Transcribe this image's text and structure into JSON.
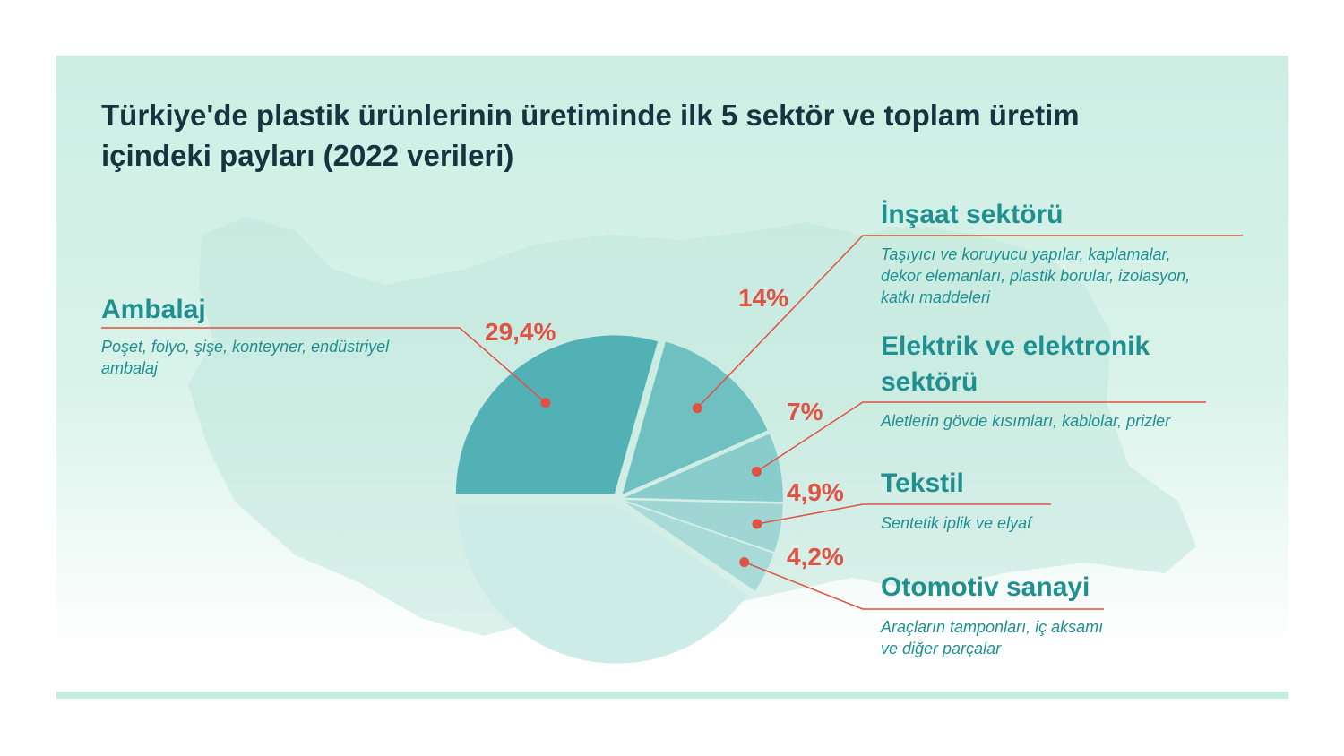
{
  "title": "Türkiye'de plastik ürünlerinin üretiminde ilk 5 sektör ve toplam üretim içindeki payları (2022 verileri)",
  "colors": {
    "accent": "#e05243",
    "label": "#1f8f90",
    "title": "#173340",
    "background": "#d4f1e7",
    "slice_main": "#52b1b5",
    "slice_secondary": "#6fc1c1",
    "slice_small": "#9fd6d4",
    "slice_rest": "#cdebe7"
  },
  "chart_data": {
    "type": "pie",
    "title": "Türkiye'de plastik ürünlerinin üretiminde ilk 5 sektör ve toplam üretim içindeki payları (2022 verileri)",
    "unit": "%",
    "slices": [
      {
        "name": "Ambalaj",
        "value": 29.4,
        "value_label": "29,4%",
        "description": "Poşet, folyo, şişe, konteyner, endüstriyel ambalaj",
        "color": "#52b1b5"
      },
      {
        "name": "İnşaat sektörü",
        "value": 14,
        "value_label": "14%",
        "description": "Taşıyıcı ve koruyucu yapılar, kaplamalar, dekor elemanları, plastik borular, izolasyon, katkı maddeleri",
        "color": "#6fc1c1"
      },
      {
        "name": "Elektrik ve elektronik sektörü",
        "value": 7,
        "value_label": "7%",
        "description": "Aletlerin gövde kısımları, kablolar, prizler",
        "color": "#88cccb"
      },
      {
        "name": "Tekstil",
        "value": 4.9,
        "value_label": "4,9%",
        "description": "Sentetik iplik ve elyaf",
        "color": "#9fd6d4"
      },
      {
        "name": "Otomotiv sanayi",
        "value": 4.2,
        "value_label": "4,2%",
        "description": "Araçların tamponları, iç aksamı ve diğer parçalar",
        "color": "#a8dbd8"
      }
    ],
    "remainder": {
      "value": 40.5,
      "color": "#cdebe7"
    }
  },
  "labels": {
    "ambalaj": {
      "title": "Ambalaj",
      "desc_1": "Poşet, folyo, şişe, konteyner, endüstriyel",
      "desc_2": "ambalaj",
      "pct": "29,4%"
    },
    "insaat": {
      "title": "İnşaat sektörü",
      "desc_1": "Taşıyıcı ve koruyucu yapılar, kaplamalar,",
      "desc_2": "dekor elemanları, plastik borular, izolasyon,",
      "desc_3": "katkı maddeleri",
      "pct": "14%"
    },
    "elektrik": {
      "title_1": "Elektrik ve elektronik",
      "title_2": "sektörü",
      "desc_1": "Aletlerin gövde kısımları, kablolar, prizler",
      "pct": "7%"
    },
    "tekstil": {
      "title": "Tekstil",
      "desc_1": "Sentetik iplik ve elyaf",
      "pct": "4,9%"
    },
    "otomotiv": {
      "title": "Otomotiv sanayi",
      "desc_1": "Araçların tamponları, iç aksamı",
      "desc_2": "ve diğer parçalar",
      "pct": "4,2%"
    }
  }
}
